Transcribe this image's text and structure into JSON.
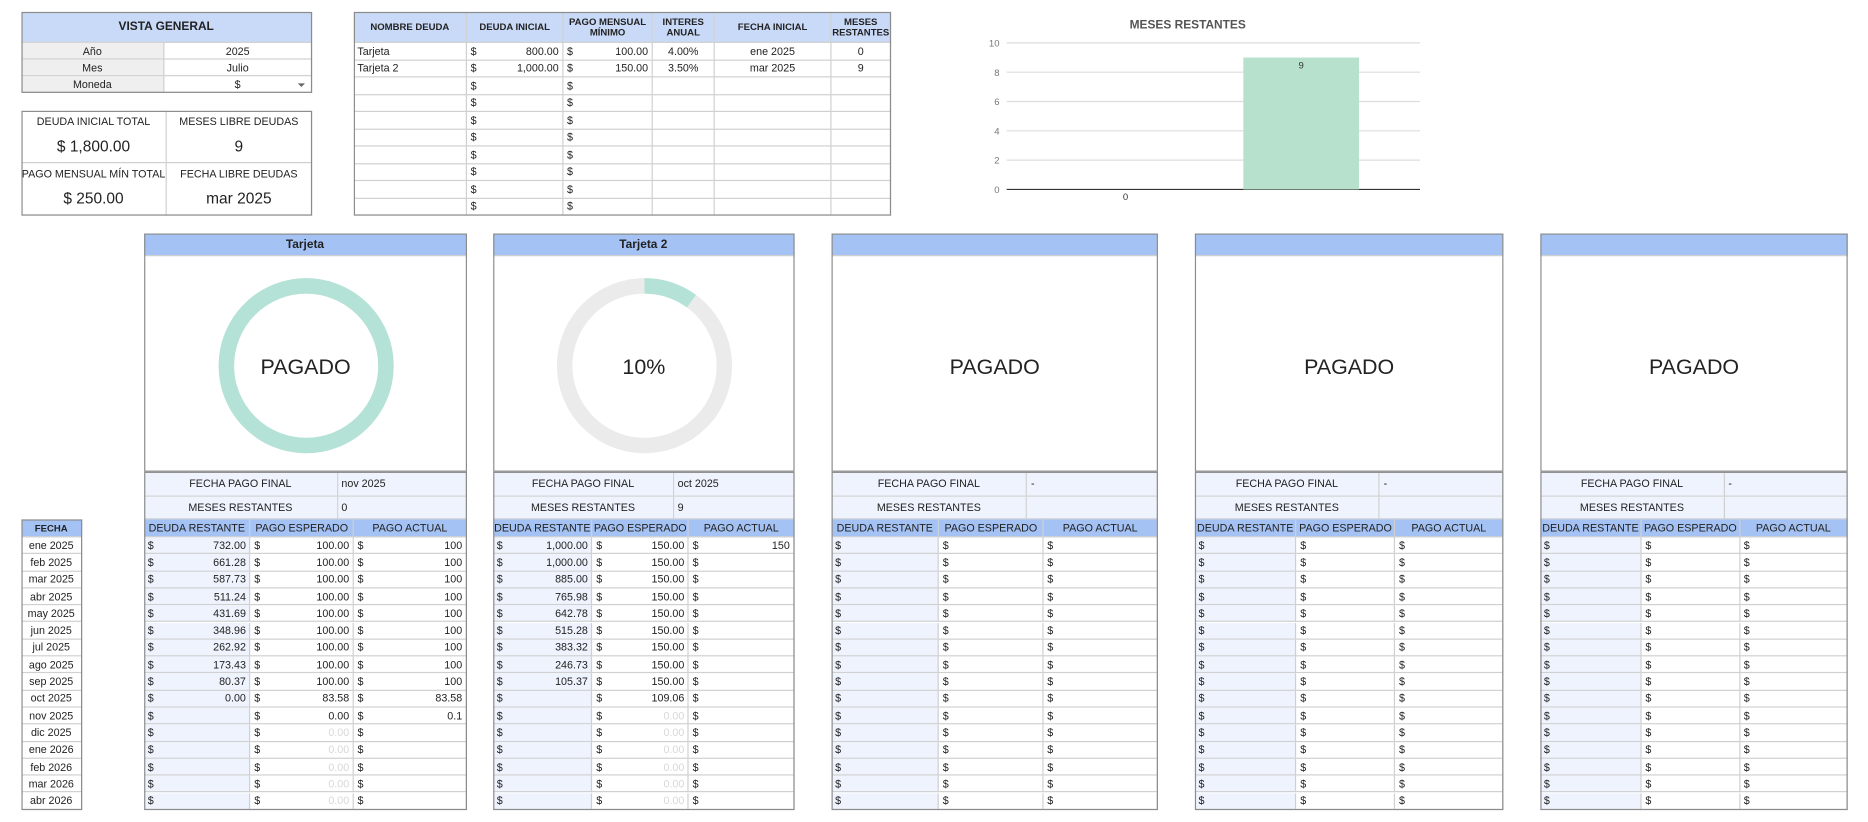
{
  "overview": {
    "title": "VISTA GENERAL",
    "rows": [
      [
        "Año",
        "2025"
      ],
      [
        "Mes",
        "Julio"
      ],
      [
        "Moneda",
        "$"
      ]
    ]
  },
  "summary": [
    {
      "label": "DEUDA INICIAL TOTAL",
      "value": "$ 1,800.00"
    },
    {
      "label": "MESES LIBRE DEUDAS",
      "value": "9"
    },
    {
      "label": "PAGO MENSUAL MÍN TOTAL",
      "value": "$ 250.00"
    },
    {
      "label": "FECHA LIBRE DEUDAS",
      "value": "mar 2025"
    }
  ],
  "debts": {
    "headers": [
      "NOMBRE DEUDA",
      "DEUDA INICIAL",
      "PAGO MENSUAL MÍNIMO",
      "INTERES ANUAL",
      "FECHA INICIAL",
      "MESES RESTANTES"
    ],
    "rows": [
      [
        "Tarjeta",
        "800.00",
        "100.00",
        "4.00%",
        "ene 2025",
        "0"
      ],
      [
        "Tarjeta 2",
        "1,000.00",
        "150.00",
        "3.50%",
        "mar 2025",
        "9"
      ],
      [
        null,
        null,
        null,
        null,
        null,
        null
      ],
      [
        null,
        null,
        null,
        null,
        null,
        null
      ],
      [
        null,
        null,
        null,
        null,
        null,
        null
      ],
      [
        null,
        null,
        null,
        null,
        null,
        null
      ],
      [
        null,
        null,
        null,
        null,
        null,
        null
      ],
      [
        null,
        null,
        null,
        null,
        null,
        null
      ],
      [
        null,
        null,
        null,
        null,
        null,
        null
      ],
      [
        null,
        null,
        null,
        null,
        null,
        null
      ]
    ]
  },
  "chart_data": {
    "type": "bar",
    "title": "MESES RESTANTES",
    "categories": [
      null,
      null
    ],
    "values": [
      0,
      9
    ],
    "color": "#b7e1cd",
    "ylim": [
      0,
      10
    ],
    "yticks": [
      0,
      2,
      4,
      6,
      8,
      10
    ],
    "grid": true
  },
  "schedule": {
    "date_header": "FECHA",
    "dates": [
      "ene 2025",
      "feb 2025",
      "mar 2025",
      "abr 2025",
      "may 2025",
      "jun 2025",
      "jul 2025",
      "ago 2025",
      "sep 2025",
      "oct 2025",
      "nov 2025",
      "dic 2025",
      "ene 2026",
      "feb 2026",
      "mar 2026",
      "abr 2026"
    ],
    "info_labels": [
      "FECHA PAGO FINAL",
      "MESES RESTANTES"
    ],
    "column_headers": [
      "DEUDA RESTANTE",
      "PAGO ESPERADO",
      "PAGO ACTUAL"
    ],
    "panels": [
      {
        "name": "Tarjeta",
        "progress": 100,
        "center_text": "PAGADO",
        "fecha_pago_final": "nov 2025",
        "meses_restantes": "0",
        "faint_from": 11,
        "rows": [
          [
            "732.00",
            "100.00",
            "100"
          ],
          [
            "661.28",
            "100.00",
            "100"
          ],
          [
            "587.73",
            "100.00",
            "100"
          ],
          [
            "511.24",
            "100.00",
            "100"
          ],
          [
            "431.69",
            "100.00",
            "100"
          ],
          [
            "348.96",
            "100.00",
            "100"
          ],
          [
            "262.92",
            "100.00",
            "100"
          ],
          [
            "173.43",
            "100.00",
            "100"
          ],
          [
            "80.37",
            "100.00",
            "100"
          ],
          [
            "0.00",
            "83.58",
            "83.58"
          ],
          [
            null,
            "0.00",
            "0.1"
          ],
          [
            null,
            "0.00",
            null
          ],
          [
            null,
            "0.00",
            null
          ],
          [
            null,
            "0.00",
            null
          ],
          [
            null,
            "0.00",
            null
          ],
          [
            null,
            "0.00",
            null
          ]
        ]
      },
      {
        "name": "Tarjeta 2",
        "progress": 10,
        "center_text": "10%",
        "fecha_pago_final": "oct 2025",
        "meses_restantes": "9",
        "faint_from": 10,
        "rows": [
          [
            "1,000.00",
            "150.00",
            "150"
          ],
          [
            "1,000.00",
            "150.00",
            null
          ],
          [
            "885.00",
            "150.00",
            null
          ],
          [
            "765.98",
            "150.00",
            null
          ],
          [
            "642.78",
            "150.00",
            null
          ],
          [
            "515.28",
            "150.00",
            null
          ],
          [
            "383.32",
            "150.00",
            null
          ],
          [
            "246.73",
            "150.00",
            null
          ],
          [
            "105.37",
            "150.00",
            null
          ],
          [
            null,
            "109.06",
            null
          ],
          [
            null,
            "0.00",
            null
          ],
          [
            null,
            "0.00",
            null
          ],
          [
            null,
            "0.00",
            null
          ],
          [
            null,
            "0.00",
            null
          ],
          [
            null,
            "0.00",
            null
          ],
          [
            null,
            "0.00",
            null
          ]
        ]
      },
      {
        "center_text": "PAGADO",
        "fecha_pago_final": "-"
      },
      {
        "center_text": "PAGADO",
        "fecha_pago_final": "-"
      },
      {
        "center_text": "PAGADO",
        "fecha_pago_final": "-"
      }
    ]
  }
}
